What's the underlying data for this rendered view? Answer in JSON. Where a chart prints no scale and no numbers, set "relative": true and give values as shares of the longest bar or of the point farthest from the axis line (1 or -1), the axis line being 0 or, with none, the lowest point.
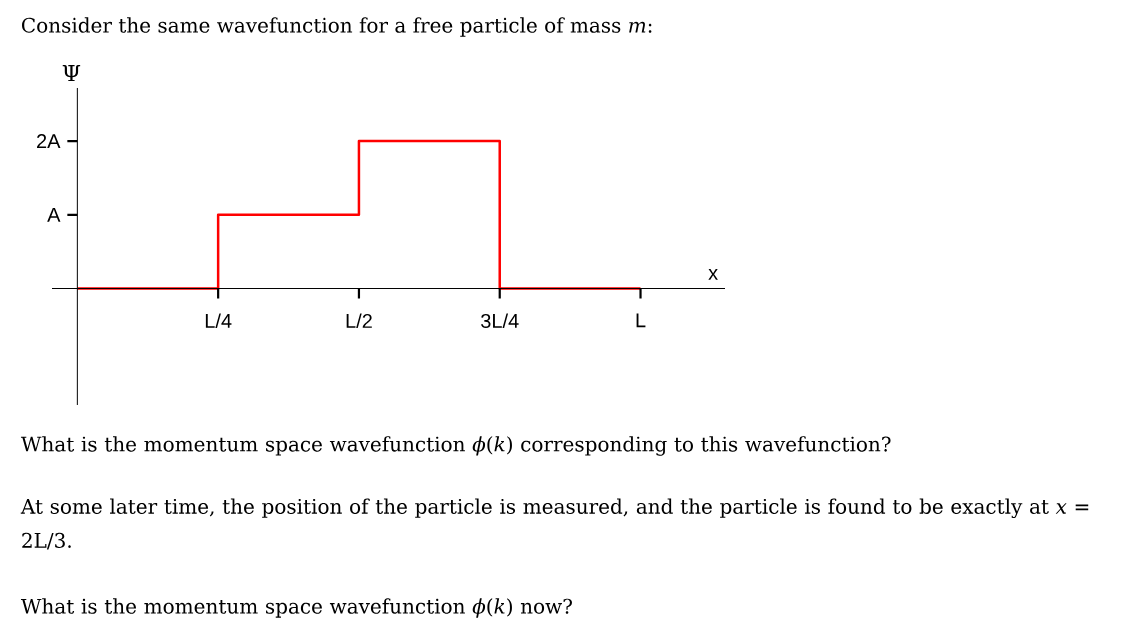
{
  "chart_data": {
    "type": "step",
    "relative": true,
    "title": "Consider the same wavefunction for a free particle of mass *m*:",
    "xlabel": "x",
    "ylabel": "Ψ",
    "categories": [
      null,
      "L/4",
      "L/2",
      "3L/4",
      "L"
    ],
    "series": [
      {
        "color": "#ff0000",
        "values": [
          0,
          0.5,
          1,
          0,
          0
        ]
      }
    ],
    "annotations": [
      "A",
      "2A",
      "What is the momentum space wavefunction *ϕ*(*k*) corresponding to this wavefunction?",
      "At some later time, the position of the particle is measured, and the particle is found to be exactly at *x* = 2L/3.",
      "What is the momentum space wavefunction *ϕ*(*k*) now?"
    ]
  }
}
